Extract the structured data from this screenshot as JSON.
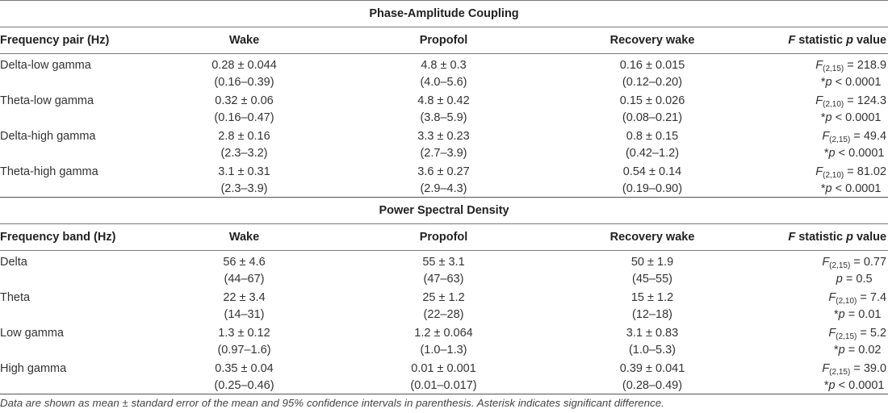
{
  "pac": {
    "title": "Phase-Amplitude Coupling",
    "headers": {
      "label": "Frequency pair (Hz)",
      "wake": "Wake",
      "propofol": "Propofol",
      "recovery": "Recovery wake",
      "fstat_f": "F",
      "fstat_mid": "statistic",
      "fstat_p": "p",
      "fstat_end": "value"
    },
    "rows": [
      {
        "label": "Delta-low gamma",
        "wake": [
          "0.28 ± 0.044",
          "(0.16–0.39)"
        ],
        "propofol": [
          "4.8 ± 0.3",
          "(4.0–5.6)"
        ],
        "recovery": [
          "0.16 ± 0.015",
          "(0.12–0.20)"
        ],
        "f_df": "(2,15)",
        "f_val": " = 218.9",
        "p_pre": "*",
        "p_val": " < 0.0001"
      },
      {
        "label": "Theta-low gamma",
        "wake": [
          "0.32 ± 0.06",
          "(0.16–0.47)"
        ],
        "propofol": [
          "4.8 ± 0.42",
          "(3.8–5.9)"
        ],
        "recovery": [
          "0.15 ± 0.026",
          "(0.08–0.21)"
        ],
        "f_df": "(2,10)",
        "f_val": " = 124.3",
        "p_pre": "*",
        "p_val": " < 0.0001"
      },
      {
        "label": "Delta-high gamma",
        "wake": [
          "2.8 ± 0.16",
          "(2.3–3.2)"
        ],
        "propofol": [
          "3.3 ± 0.23",
          "(2.7–3.9)"
        ],
        "recovery": [
          "0.8 ± 0.15",
          "(0.42–1.2)"
        ],
        "f_df": "(2,15)",
        "f_val": " = 49.4",
        "p_pre": "*",
        "p_val": " < 0.0001"
      },
      {
        "label": "Theta-high gamma",
        "wake": [
          "3.1 ± 0.31",
          "(2.3–3.9)"
        ],
        "propofol": [
          "3.6 ± 0.27",
          "(2.9–4.3)"
        ],
        "recovery": [
          "0.54 ± 0.14",
          "(0.19–0.90)"
        ],
        "f_df": "(2,10)",
        "f_val": " = 81.02",
        "p_pre": "*",
        "p_val": " < 0.0001"
      }
    ]
  },
  "psd": {
    "title": "Power Spectral Density",
    "headers": {
      "label": "Frequency band (Hz)",
      "wake": "Wake",
      "propofol": "Propofol",
      "recovery": "Recovery wake",
      "fstat_f": "F",
      "fstat_mid": "statistic",
      "fstat_p": "p",
      "fstat_end": "value"
    },
    "rows": [
      {
        "label": "Delta",
        "wake": [
          "56 ± 4.6",
          "(44–67)"
        ],
        "propofol": [
          "55 ± 3.1",
          "(47–63)"
        ],
        "recovery": [
          "50 ± 1.9",
          "(45–55)"
        ],
        "f_df": "(2,15)",
        "f_val": " = 0.77",
        "p_pre": "",
        "p_val": " = 0.5"
      },
      {
        "label": "Theta",
        "wake": [
          "22 ± 3.4",
          "(14–31)"
        ],
        "propofol": [
          "25 ± 1.2",
          "(22–28)"
        ],
        "recovery": [
          "15 ± 1.2",
          "(12–18)"
        ],
        "f_df": "(2,10)",
        "f_val": " = 7.4",
        "p_pre": "*",
        "p_val": " = 0.01"
      },
      {
        "label": "Low gamma",
        "wake": [
          "1.3 ± 0.12",
          "(0.97–1.6)"
        ],
        "propofol": [
          "1.2 ± 0.064",
          "(1.0–1.3)"
        ],
        "recovery": [
          "3.1 ± 0.83",
          "(1.0–5.3)"
        ],
        "f_df": "(2,15)",
        "f_val": " = 5.2",
        "p_pre": "*",
        "p_val": " = 0.02"
      },
      {
        "label": "High gamma",
        "wake": [
          "0.35 ± 0.04",
          "(0.25–0.46)"
        ],
        "propofol": [
          "0.01 ± 0.001",
          "(0.01–0.017)"
        ],
        "recovery": [
          "0.39 ± 0.041",
          "(0.28–0.49)"
        ],
        "f_df": "(2,15)",
        "f_val": " = 39.0",
        "p_pre": "*",
        "p_val": " < 0.0001"
      }
    ]
  },
  "footnote": "Data are shown as mean ± standard error of the mean and 95% confidence intervals in parenthesis. Asterisk indicates significant difference."
}
